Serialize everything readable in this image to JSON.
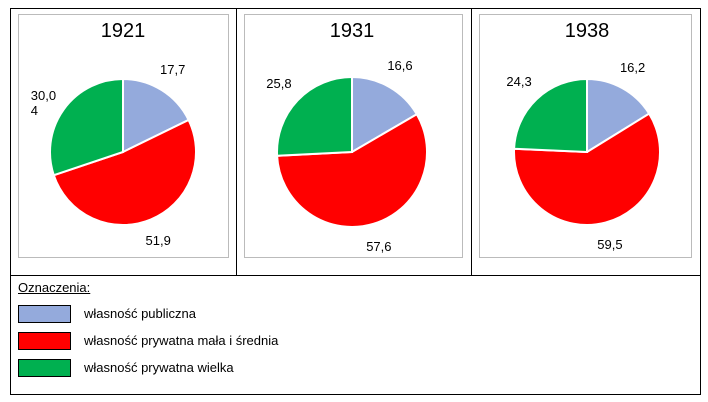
{
  "chart_data": [
    {
      "type": "pie",
      "title": "1921",
      "values": [
        17.7,
        51.9,
        30.04
      ],
      "value_labels": [
        "17,7",
        "51,9",
        "30,04"
      ]
    },
    {
      "type": "pie",
      "title": "1931",
      "values": [
        16.6,
        57.6,
        25.8
      ],
      "value_labels": [
        "16,6",
        "57,6",
        "25,8"
      ]
    },
    {
      "type": "pie",
      "title": "1938",
      "values": [
        16.2,
        59.5,
        24.3
      ],
      "value_labels": [
        "16,2",
        "59,5",
        "24,3"
      ]
    }
  ],
  "legend": {
    "title": "Oznaczenia:",
    "labels": [
      "własność publiczna",
      "własność prywatna mała i średnia",
      "własność prywatna wielka"
    ],
    "colors": [
      "#94aadc",
      "#ff0000",
      "#00b050"
    ]
  }
}
